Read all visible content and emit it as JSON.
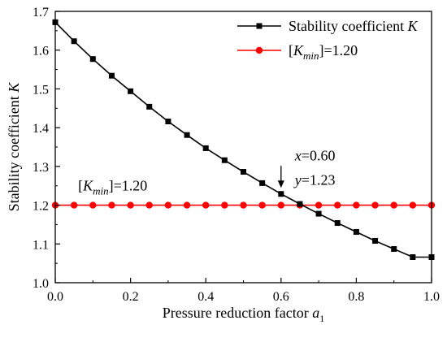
{
  "chart_data": {
    "type": "line",
    "xlabel": "Pressure reduction factor a1",
    "xlabel_parts": {
      "text": "Pressure reduction factor ",
      "var": "a",
      "sub": "1"
    },
    "ylabel": "Stability coefficient K",
    "ylabel_parts": {
      "text": "Stability coefficient ",
      "var": "K"
    },
    "xlim": [
      0.0,
      1.0
    ],
    "ylim": [
      1.0,
      1.7
    ],
    "xticks": [
      0.0,
      0.2,
      0.4,
      0.6,
      0.8,
      1.0
    ],
    "xtick_labels": [
      "0.0",
      "0.2",
      "0.4",
      "0.6",
      "0.8",
      "1.0"
    ],
    "yticks": [
      1.0,
      1.1,
      1.2,
      1.3,
      1.4,
      1.5,
      1.6,
      1.7
    ],
    "ytick_labels": [
      "1.0",
      "1.1",
      "1.2",
      "1.3",
      "1.4",
      "1.5",
      "1.6",
      "1.7"
    ],
    "grid": false,
    "legend_position": "top-right",
    "series": [
      {
        "name": "Stability coefficient K",
        "name_parts": {
          "text": "Stability coefficient ",
          "var": "K"
        },
        "color": "#000000",
        "marker": "square",
        "x": [
          0.0,
          0.05,
          0.1,
          0.15,
          0.2,
          0.25,
          0.3,
          0.35,
          0.4,
          0.45,
          0.5,
          0.55,
          0.6,
          0.65,
          0.7,
          0.75,
          0.8,
          0.85,
          0.9,
          0.95,
          1.0
        ],
        "y": [
          1.672,
          1.623,
          1.577,
          1.534,
          1.494,
          1.454,
          1.416,
          1.381,
          1.347,
          1.316,
          1.286,
          1.257,
          1.229,
          1.203,
          1.178,
          1.154,
          1.131,
          1.108,
          1.087,
          1.066,
          1.066
        ]
      },
      {
        "name": "[Kmin]=1.20",
        "name_parts": {
          "open": "[",
          "var": "K",
          "sub": "min",
          "close": "]=1.20"
        },
        "color": "#ff0000",
        "marker": "circle",
        "x": [
          0.0,
          0.05,
          0.1,
          0.15,
          0.2,
          0.25,
          0.3,
          0.35,
          0.4,
          0.45,
          0.5,
          0.55,
          0.6,
          0.65,
          0.7,
          0.75,
          0.8,
          0.85,
          0.9,
          0.95,
          1.0
        ],
        "y": [
          1.2,
          1.2,
          1.2,
          1.2,
          1.2,
          1.2,
          1.2,
          1.2,
          1.2,
          1.2,
          1.2,
          1.2,
          1.2,
          1.2,
          1.2,
          1.2,
          1.2,
          1.2,
          1.2,
          1.2,
          1.2
        ]
      }
    ],
    "annotations": [
      {
        "kind": "point-callout",
        "x": 0.6,
        "y": 1.23,
        "line1": {
          "var": "x",
          "rest": "=0.60"
        },
        "line2": {
          "var": "y",
          "rest": "=1.23"
        }
      },
      {
        "kind": "line-label",
        "parts": {
          "open": "[",
          "var": "K",
          "sub": "min",
          "close": "]=1.20"
        }
      }
    ]
  }
}
